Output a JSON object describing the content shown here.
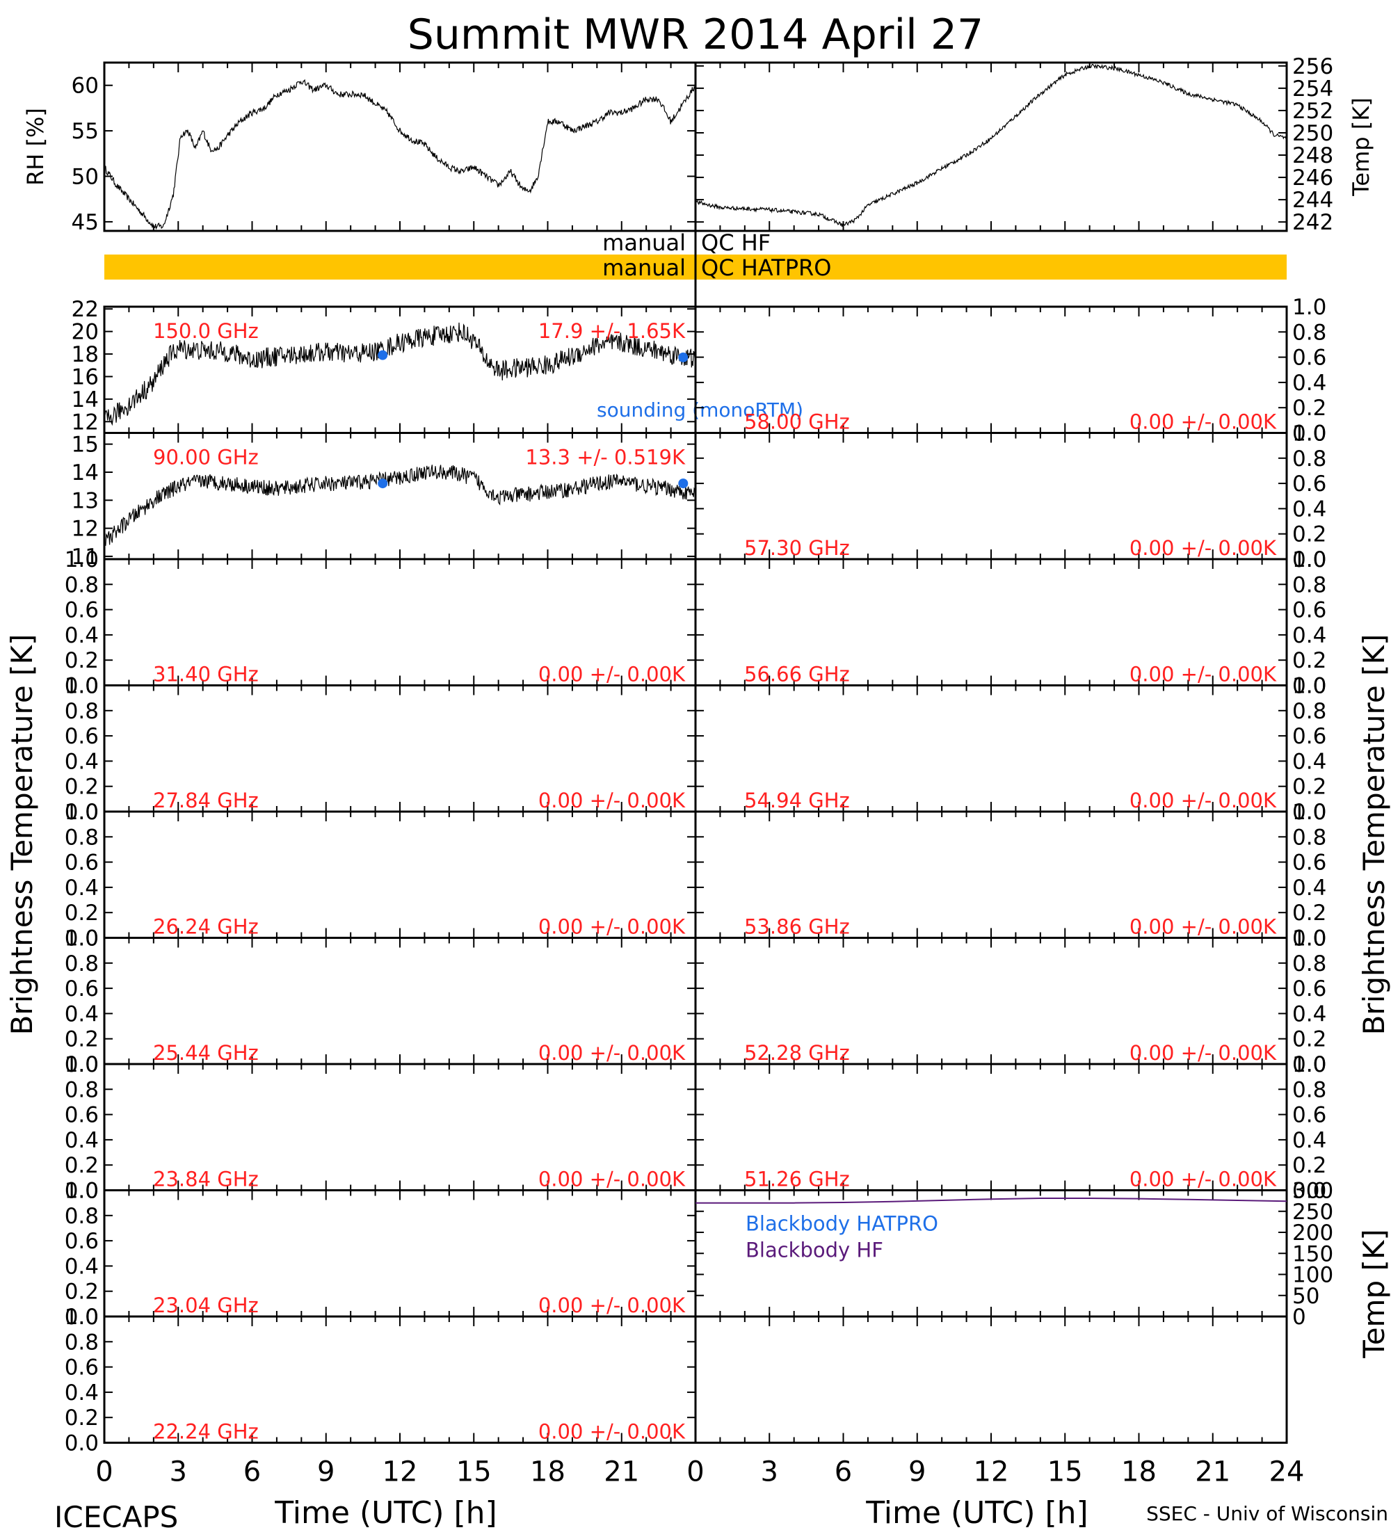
{
  "title": "Summit MWR 2014 April 27",
  "footer": {
    "left": "ICECAPS",
    "right": "SSEC - Univ of Wisconsin",
    "xlabel": "Time (UTC) [h]",
    "xticks": [
      "0",
      "3",
      "6",
      "9",
      "12",
      "15",
      "18",
      "21",
      "24"
    ]
  },
  "colors": {
    "data": "#000000",
    "freq_label": "#ff2020",
    "sounding": "#1e6fe8",
    "qc_bar": "#ffc400",
    "blackbody_hf": "#5a1a7a",
    "blackbody_hatpro": "#1e6fe8"
  },
  "qc": {
    "hf_left": "manual",
    "hf_right": "QC HF",
    "hatpro_left": "manual",
    "hatpro_right": "QC HATPRO"
  },
  "ylabel_bt": "Brightness Temperature [K]",
  "ylabel_temp_bb": "Temp [K]",
  "chart_data": [
    {
      "id": "rh",
      "type": "line",
      "ylabel": "RH [%]",
      "xlim": [
        0,
        24
      ],
      "ylim": [
        44,
        62.5
      ],
      "yticks": [
        "45",
        "50",
        "55",
        "60"
      ],
      "x": [
        0,
        0.5,
        1,
        1.5,
        2,
        2.4,
        2.8,
        3.1,
        3.4,
        3.7,
        4.0,
        4.3,
        4.6,
        5.0,
        5.5,
        6.0,
        6.5,
        7.0,
        7.5,
        8.0,
        8.5,
        9.0,
        9.5,
        10.0,
        10.5,
        11.0,
        11.5,
        12.0,
        12.5,
        13.0,
        13.5,
        14.0,
        14.5,
        15.0,
        15.5,
        16.0,
        16.5,
        17.0,
        17.3,
        17.6,
        18.0,
        18.5,
        19.0,
        19.5,
        20.0,
        20.5,
        21.0,
        21.5,
        22.0,
        22.5,
        23.0,
        23.5,
        24.0
      ],
      "values": [
        51,
        49,
        47.5,
        46,
        44.5,
        44.5,
        48,
        54.5,
        55,
        53,
        55,
        53,
        53,
        54.5,
        56,
        57,
        57.5,
        59,
        59.5,
        60.5,
        59.5,
        60,
        59,
        59,
        59,
        58,
        57,
        55,
        54,
        53.5,
        52,
        51,
        50.5,
        51,
        50,
        49,
        50.5,
        48.5,
        48.5,
        50,
        56,
        56,
        55,
        55.5,
        56,
        57,
        57,
        57.5,
        58.5,
        58.5,
        56,
        58,
        60
      ]
    },
    {
      "id": "temp",
      "type": "line",
      "ylabel": "Temp [K]",
      "xlim": [
        0,
        24
      ],
      "ylim": [
        241.2,
        256.3
      ],
      "yticks": [
        "242",
        "244",
        "246",
        "248",
        "250",
        "252",
        "254",
        "256"
      ],
      "x": [
        0,
        1,
        2,
        3,
        4,
        5,
        6,
        6.5,
        7,
        8,
        9,
        10,
        11,
        12,
        13,
        14,
        15,
        16,
        17,
        18,
        19,
        20,
        21,
        22,
        23,
        23.5,
        24
      ],
      "values": [
        243.8,
        243.3,
        243.2,
        243.1,
        242.9,
        242.7,
        241.7,
        242.2,
        243.5,
        244.5,
        245.5,
        246.8,
        248,
        249.5,
        251.5,
        253.5,
        255.2,
        256,
        255.8,
        255.2,
        254.5,
        253.5,
        253,
        252.5,
        251,
        249.8,
        249.5
      ]
    },
    {
      "id": "150",
      "type": "line",
      "freq": "150.0 GHz",
      "stat": "17.9 +/- 1.65K",
      "xlim": [
        0,
        24
      ],
      "ylim": [
        11,
        22.2
      ],
      "yticks": [
        "12",
        "14",
        "16",
        "18",
        "20",
        "22"
      ],
      "x": [
        0,
        1,
        2,
        2.5,
        3,
        4,
        5,
        6,
        7,
        8,
        9,
        10,
        11,
        12,
        13,
        14,
        14.5,
        15,
        15.5,
        16,
        17,
        18,
        19,
        20,
        21,
        22,
        23,
        24
      ],
      "values": [
        12,
        13.5,
        15.5,
        17.5,
        18.5,
        18.3,
        18.2,
        17.5,
        17.8,
        18,
        18.2,
        18,
        18.2,
        19,
        19.5,
        19.8,
        20,
        19.2,
        17.5,
        16.5,
        16.8,
        17,
        17.8,
        18.8,
        19,
        18.5,
        18,
        17.5
      ],
      "sounding_x": [
        11.3,
        23.5
      ],
      "sounding_y": [
        17.9,
        17.7
      ],
      "sounding_label": "sounding (monoRTM)"
    },
    {
      "id": "90",
      "type": "line",
      "freq": "90.00 GHz",
      "stat": "13.3 +/- 0.519K",
      "xlim": [
        0,
        24
      ],
      "ylim": [
        10.9,
        15.4
      ],
      "yticks": [
        "11",
        "12",
        "13",
        "14",
        "15"
      ],
      "x": [
        0,
        1,
        2,
        3,
        4,
        5,
        6,
        7,
        8,
        9,
        10,
        11,
        12,
        13,
        14,
        15,
        15.5,
        16,
        17,
        18,
        19,
        20,
        21,
        22,
        23,
        24
      ],
      "values": [
        11.5,
        12.3,
        13,
        13.5,
        13.7,
        13.6,
        13.5,
        13.4,
        13.5,
        13.6,
        13.6,
        13.7,
        13.8,
        14,
        14,
        13.8,
        13.4,
        13.1,
        13.2,
        13.3,
        13.4,
        13.6,
        13.7,
        13.5,
        13.4,
        13.2
      ],
      "sounding_x": [
        11.3,
        23.5
      ],
      "sounding_y": [
        13.6,
        13.6
      ]
    },
    {
      "id": "58.00",
      "type": "line",
      "freq": "58.00 GHz",
      "stat": "0.00 +/- 0.00K",
      "ylim": [
        0,
        1
      ],
      "yticks": [
        "0.0",
        "0.2",
        "0.4",
        "0.6",
        "0.8",
        "1.0"
      ]
    },
    {
      "id": "57.30",
      "type": "line",
      "freq": "57.30 GHz",
      "stat": "0.00 +/- 0.00K",
      "ylim": [
        0,
        1
      ],
      "yticks": [
        "0.0",
        "0.2",
        "0.4",
        "0.6",
        "0.8",
        "1.0"
      ]
    },
    {
      "id": "31.40",
      "type": "line",
      "freq": "31.40 GHz",
      "stat": "0.00 +/- 0.00K",
      "ylim": [
        0,
        1
      ],
      "yticks": [
        "0.0",
        "0.2",
        "0.4",
        "0.6",
        "0.8",
        "1.0"
      ]
    },
    {
      "id": "56.66",
      "type": "line",
      "freq": "56.66 GHz",
      "stat": "0.00 +/- 0.00K",
      "ylim": [
        0,
        1
      ],
      "yticks": [
        "0.0",
        "0.2",
        "0.4",
        "0.6",
        "0.8",
        "1.0"
      ]
    },
    {
      "id": "27.84",
      "type": "line",
      "freq": "27.84 GHz",
      "stat": "0.00 +/- 0.00K",
      "ylim": [
        0,
        1
      ],
      "yticks": [
        "0.0",
        "0.2",
        "0.4",
        "0.6",
        "0.8",
        "1.0"
      ]
    },
    {
      "id": "54.94",
      "type": "line",
      "freq": "54.94 GHz",
      "stat": "0.00 +/- 0.00K",
      "ylim": [
        0,
        1
      ],
      "yticks": [
        "0.0",
        "0.2",
        "0.4",
        "0.6",
        "0.8",
        "1.0"
      ]
    },
    {
      "id": "26.24",
      "type": "line",
      "freq": "26.24 GHz",
      "stat": "0.00 +/- 0.00K",
      "ylim": [
        0,
        1
      ],
      "yticks": [
        "0.0",
        "0.2",
        "0.4",
        "0.6",
        "0.8",
        "1.0"
      ]
    },
    {
      "id": "53.86",
      "type": "line",
      "freq": "53.86 GHz",
      "stat": "0.00 +/- 0.00K",
      "ylim": [
        0,
        1
      ],
      "yticks": [
        "0.0",
        "0.2",
        "0.4",
        "0.6",
        "0.8",
        "1.0"
      ]
    },
    {
      "id": "25.44",
      "type": "line",
      "freq": "25.44 GHz",
      "stat": "0.00 +/- 0.00K",
      "ylim": [
        0,
        1
      ],
      "yticks": [
        "0.0",
        "0.2",
        "0.4",
        "0.6",
        "0.8",
        "1.0"
      ]
    },
    {
      "id": "52.28",
      "type": "line",
      "freq": "52.28 GHz",
      "stat": "0.00 +/- 0.00K",
      "ylim": [
        0,
        1
      ],
      "yticks": [
        "0.0",
        "0.2",
        "0.4",
        "0.6",
        "0.8",
        "1.0"
      ]
    },
    {
      "id": "23.84",
      "type": "line",
      "freq": "23.84 GHz",
      "stat": "0.00 +/- 0.00K",
      "ylim": [
        0,
        1
      ],
      "yticks": [
        "0.0",
        "0.2",
        "0.4",
        "0.6",
        "0.8",
        "1.0"
      ]
    },
    {
      "id": "51.26",
      "type": "line",
      "freq": "51.26 GHz",
      "stat": "0.00 +/- 0.00K",
      "ylim": [
        0,
        1
      ],
      "yticks": [
        "0.0",
        "0.2",
        "0.4",
        "0.6",
        "0.8",
        "1.0"
      ]
    },
    {
      "id": "23.04",
      "type": "line",
      "freq": "23.04 GHz",
      "stat": "0.00 +/- 0.00K",
      "ylim": [
        0,
        1
      ],
      "yticks": [
        "0.0",
        "0.2",
        "0.4",
        "0.6",
        "0.8",
        "1.0"
      ]
    },
    {
      "id": "22.24",
      "type": "line",
      "freq": "22.24 GHz",
      "stat": "0.00 +/- 0.00K",
      "ylim": [
        0,
        1
      ],
      "yticks": [
        "0.0",
        "0.2",
        "0.4",
        "0.6",
        "0.8",
        "1.0"
      ]
    },
    {
      "id": "blackbody",
      "type": "line",
      "ylabel": "Temp [K]",
      "xlim": [
        0,
        24
      ],
      "ylim": [
        0,
        300
      ],
      "yticks": [
        "0",
        "50",
        "100",
        "150",
        "200",
        "250",
        "300"
      ],
      "series": [
        {
          "name": "Blackbody HATPRO",
          "x": [
            0,
            24
          ],
          "values": [
            0,
            0
          ]
        },
        {
          "name": "Blackbody HF",
          "x": [
            0,
            2,
            4,
            6,
            8,
            10,
            12,
            14,
            16,
            18,
            20,
            22,
            24
          ],
          "values": [
            270,
            270,
            270,
            271,
            273,
            276,
            279,
            281,
            281,
            280,
            278,
            276,
            274
          ]
        }
      ]
    }
  ]
}
